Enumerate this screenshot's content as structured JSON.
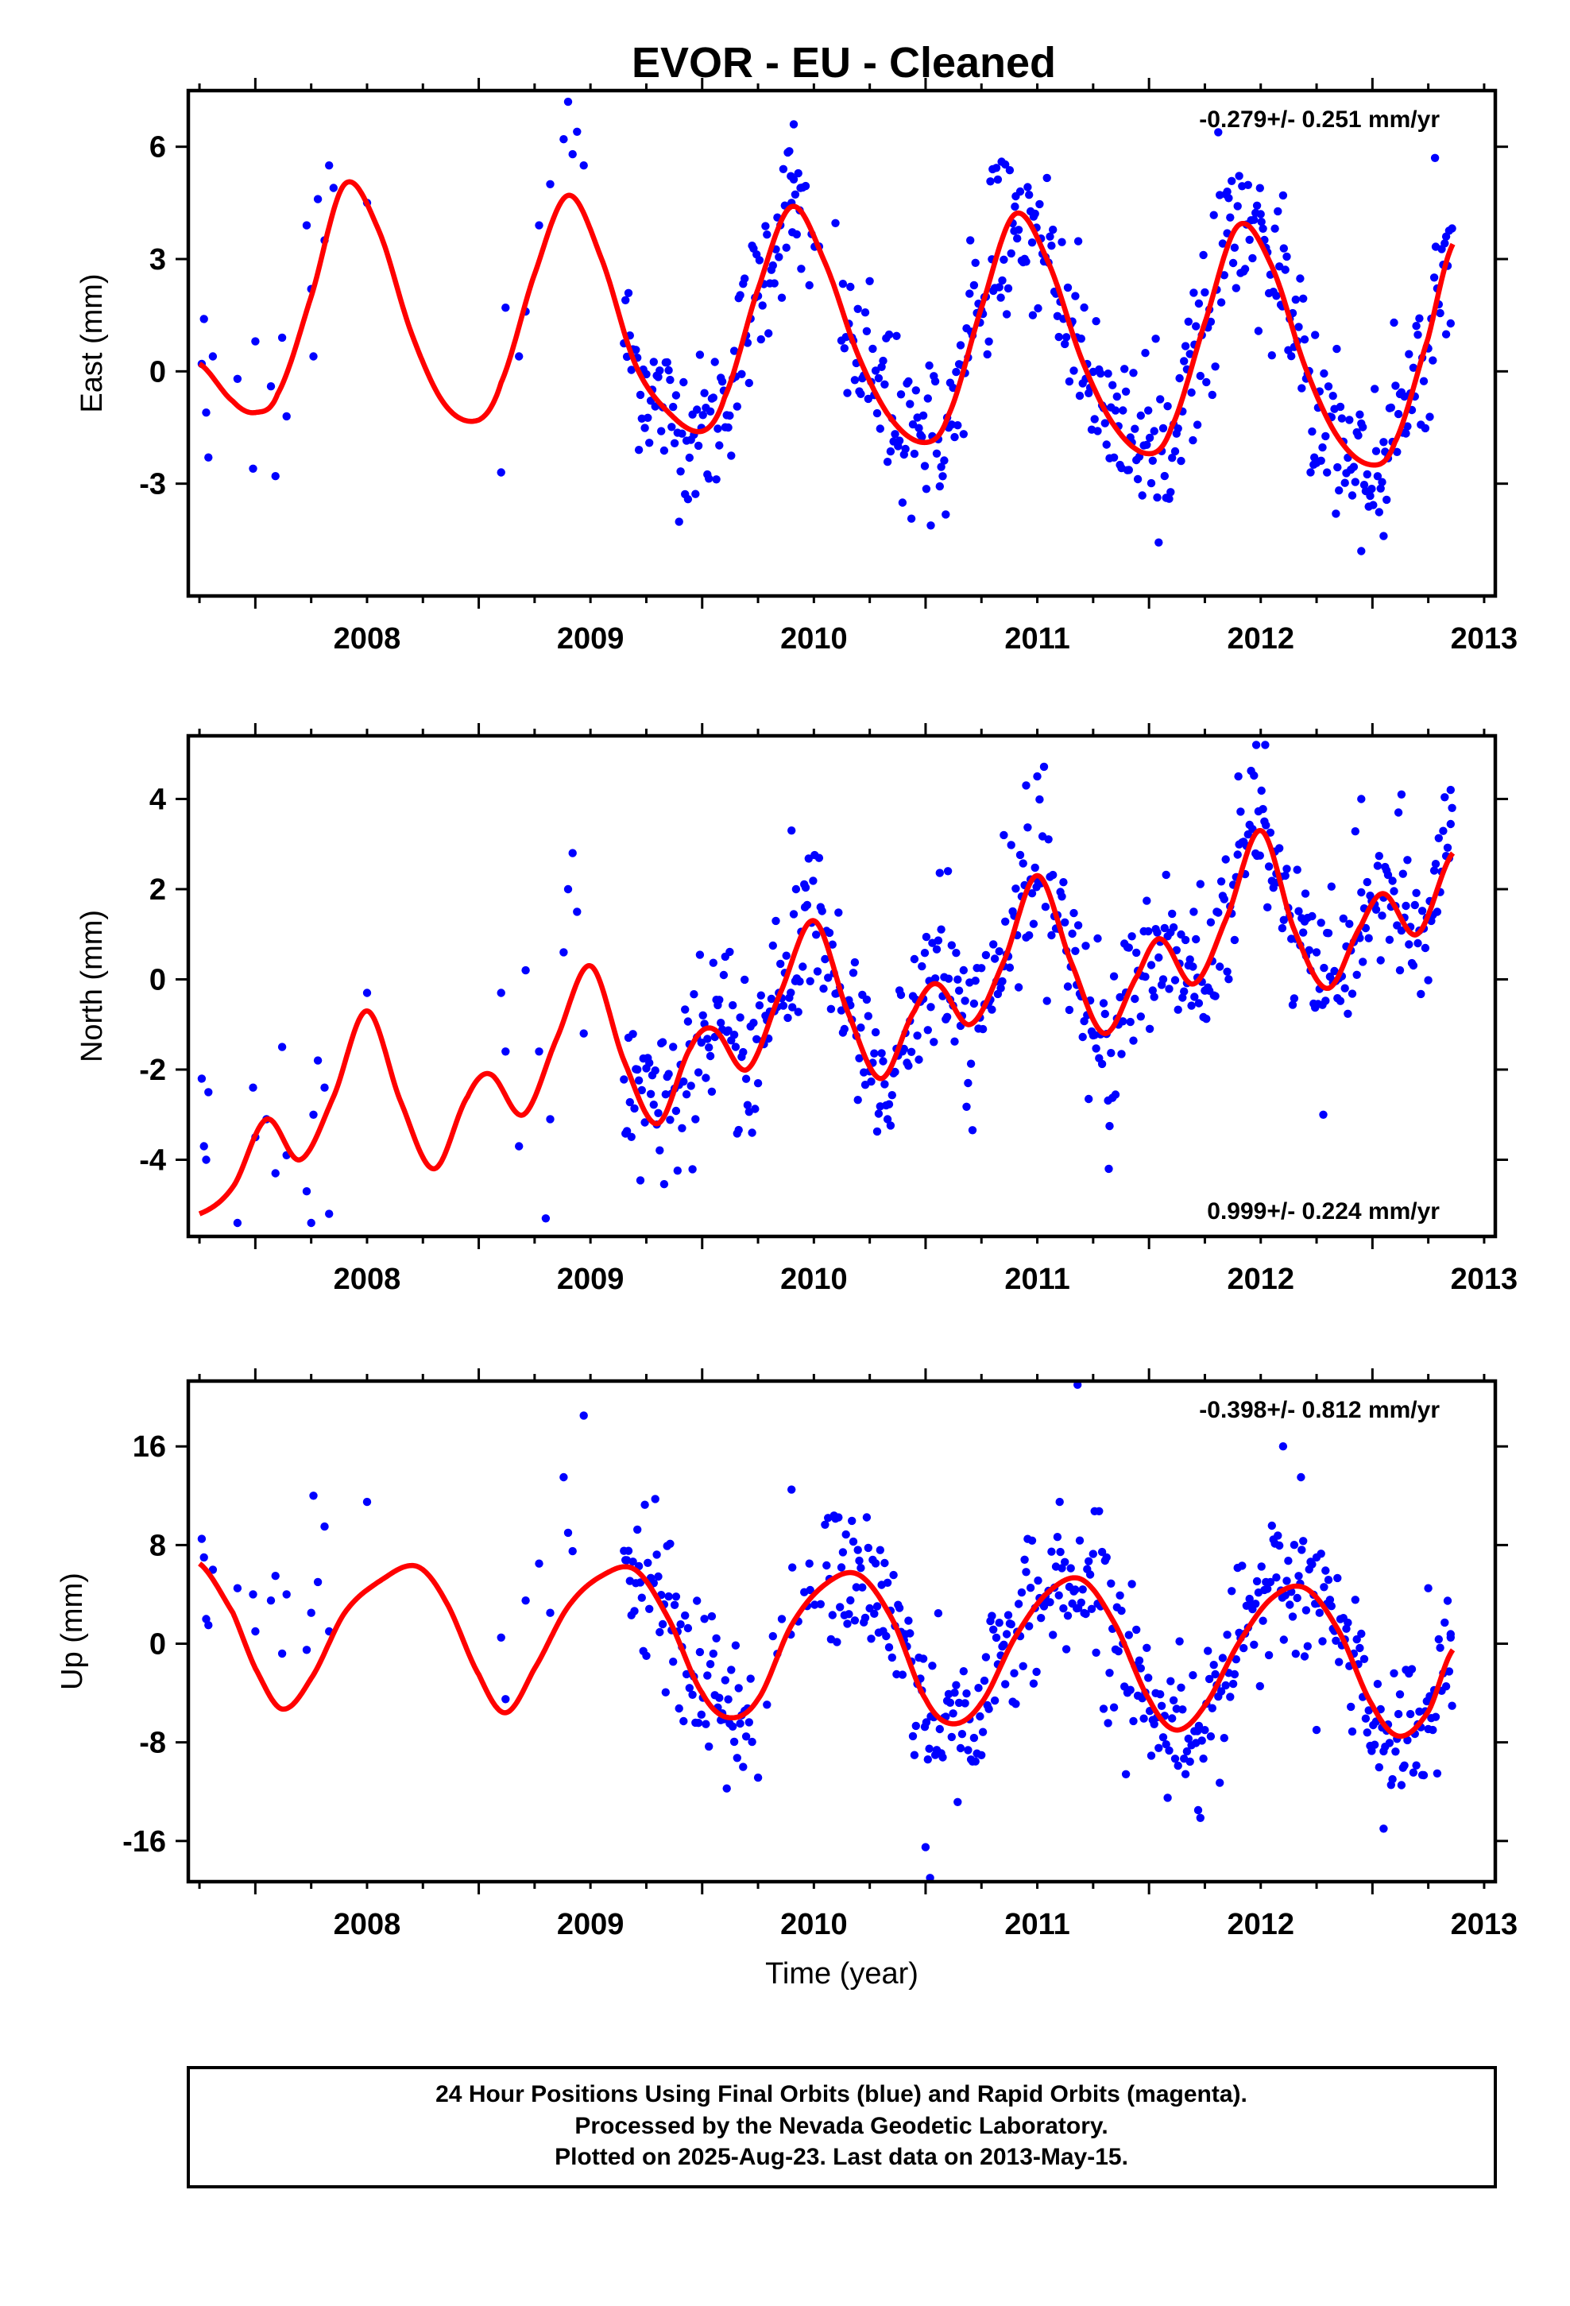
{
  "title": "EVOR  - EU - Cleaned",
  "chart_data": [
    {
      "type": "scatter",
      "ylabel": "East (mm)",
      "xlabel": "",
      "xlim": [
        2007.7,
        2013.55
      ],
      "ylim": [
        -6.0,
        7.5
      ],
      "xticks": [
        "2008",
        "2009",
        "2010",
        "2011",
        "2012",
        "2013"
      ],
      "yticks": [
        "-3",
        "0",
        "3",
        "6"
      ],
      "rate_label": "-0.279+/- 0.251 mm/yr",
      "rate_position": "top-right",
      "series": [
        {
          "kind": "observations",
          "color": "#0000ff",
          "gaps": [
            [
              2008.36,
              2008.62
            ],
            [
              2008.7,
              2009.08
            ]
          ],
          "points": [
            [
              2007.76,
              0.2
            ],
            [
              2007.77,
              1.4
            ],
            [
              2007.78,
              -1.1
            ],
            [
              2007.79,
              -2.3
            ],
            [
              2007.81,
              0.4
            ],
            [
              2007.92,
              -0.2
            ],
            [
              2007.99,
              -2.6
            ],
            [
              2008.0,
              0.8
            ],
            [
              2008.07,
              -0.4
            ],
            [
              2008.09,
              -2.8
            ],
            [
              2008.12,
              0.9
            ],
            [
              2008.14,
              -1.2
            ],
            [
              2008.23,
              3.9
            ],
            [
              2008.25,
              2.2
            ],
            [
              2008.26,
              0.4
            ],
            [
              2008.28,
              4.6
            ],
            [
              2008.31,
              3.5
            ],
            [
              2008.33,
              5.5
            ],
            [
              2008.35,
              4.9
            ],
            [
              2008.5,
              4.5
            ],
            [
              2009.1,
              -2.7
            ],
            [
              2009.12,
              1.7
            ],
            [
              2009.18,
              0.4
            ],
            [
              2009.21,
              1.6
            ],
            [
              2009.27,
              3.9
            ],
            [
              2009.32,
              5.0
            ],
            [
              2009.38,
              6.2
            ],
            [
              2009.4,
              7.2
            ],
            [
              2009.42,
              5.8
            ],
            [
              2009.44,
              6.4
            ],
            [
              2009.47,
              5.5
            ],
            [
              2010.4,
              4.5
            ],
            [
              2010.41,
              6.6
            ],
            [
              2010.44,
              4.9
            ],
            [
              2010.48,
              2.3
            ],
            [
              2011.2,
              3.5
            ],
            [
              2011.3,
              5.4
            ],
            [
              2011.34,
              5.6
            ],
            [
              2011.4,
              4.4
            ],
            [
              2011.48,
              1.5
            ],
            [
              2012.2,
              2.1
            ],
            [
              2012.35,
              4.8
            ],
            [
              2012.5,
              4.2
            ],
            [
              2012.6,
              4.7
            ],
            [
              2012.74,
              -2.3
            ],
            [
              2012.84,
              0.6
            ],
            [
              2012.95,
              -4.8
            ],
            [
              2013.05,
              -4.4
            ],
            [
              2013.28,
              5.7
            ],
            [
              2013.33,
              3.6
            ]
          ]
        },
        {
          "kind": "model",
          "color": "#ff0000",
          "x": [
            2007.75,
            2007.9,
            2008.0,
            2008.1,
            2008.25,
            2008.4,
            2008.55,
            2008.7,
            2008.85,
            2009.0,
            2009.1,
            2009.25,
            2009.4,
            2009.55,
            2009.7,
            2009.85,
            2010.0,
            2010.1,
            2010.25,
            2010.4,
            2010.55,
            2010.7,
            2010.85,
            2011.0,
            2011.1,
            2011.25,
            2011.4,
            2011.55,
            2011.7,
            2011.85,
            2012.0,
            2012.1,
            2012.25,
            2012.4,
            2012.55,
            2012.7,
            2012.85,
            2013.0,
            2013.1,
            2013.25,
            2013.36
          ],
          "y": [
            0.2,
            -0.8,
            -1.1,
            -0.6,
            2.0,
            5.0,
            3.8,
            1.0,
            -0.9,
            -1.3,
            -0.3,
            2.6,
            4.7,
            3.0,
            0.2,
            -1.1,
            -1.6,
            -0.7,
            2.2,
            4.4,
            2.9,
            0.4,
            -1.3,
            -1.9,
            -1.2,
            1.7,
            4.2,
            2.9,
            0.3,
            -1.5,
            -2.2,
            -1.5,
            1.3,
            3.9,
            2.8,
            0.1,
            -1.8,
            -2.5,
            -1.9,
            0.9,
            3.4
          ]
        }
      ]
    },
    {
      "type": "scatter",
      "ylabel": "North (mm)",
      "xlabel": "",
      "xlim": [
        2007.7,
        2013.55
      ],
      "ylim": [
        -5.7,
        5.4
      ],
      "xticks": [
        "2008",
        "2009",
        "2010",
        "2011",
        "2012",
        "2013"
      ],
      "yticks": [
        "-4",
        "-2",
        "0",
        "2",
        "4"
      ],
      "rate_label": "0.999+/- 0.224 mm/yr",
      "rate_position": "bottom-right",
      "series": [
        {
          "kind": "observations",
          "color": "#0000ff",
          "gaps": [
            [
              2008.36,
              2008.62
            ],
            [
              2008.7,
              2009.08
            ]
          ],
          "points": [
            [
              2007.76,
              -2.2
            ],
            [
              2007.77,
              -3.7
            ],
            [
              2007.78,
              -4.0
            ],
            [
              2007.79,
              -2.5
            ],
            [
              2007.92,
              -5.4
            ],
            [
              2007.99,
              -2.4
            ],
            [
              2008.0,
              -3.5
            ],
            [
              2008.05,
              -3.1
            ],
            [
              2008.09,
              -4.3
            ],
            [
              2008.12,
              -1.5
            ],
            [
              2008.14,
              -3.9
            ],
            [
              2008.23,
              -4.7
            ],
            [
              2008.25,
              -5.4
            ],
            [
              2008.26,
              -3.0
            ],
            [
              2008.28,
              -1.8
            ],
            [
              2008.31,
              -2.4
            ],
            [
              2008.33,
              -5.2
            ],
            [
              2008.5,
              -0.3
            ],
            [
              2009.1,
              -0.3
            ],
            [
              2009.12,
              -1.6
            ],
            [
              2009.18,
              -3.7
            ],
            [
              2009.21,
              0.2
            ],
            [
              2009.27,
              -1.6
            ],
            [
              2009.3,
              -5.3
            ],
            [
              2009.32,
              -3.1
            ],
            [
              2009.38,
              0.6
            ],
            [
              2009.4,
              2.0
            ],
            [
              2009.42,
              2.8
            ],
            [
              2009.44,
              1.5
            ],
            [
              2009.47,
              -1.2
            ],
            [
              2010.4,
              3.3
            ],
            [
              2010.42,
              2.0
            ],
            [
              2010.46,
              1.6
            ],
            [
              2011.1,
              2.4
            ],
            [
              2011.35,
              3.2
            ],
            [
              2011.5,
              4.5
            ],
            [
              2011.45,
              4.3
            ],
            [
              2011.82,
              -4.2
            ],
            [
              2012.2,
              1.5
            ],
            [
              2012.4,
              4.5
            ],
            [
              2012.48,
              5.2
            ],
            [
              2012.52,
              5.2
            ],
            [
              2012.7,
              1.9
            ],
            [
              2012.78,
              -3.0
            ],
            [
              2012.95,
              4.0
            ],
            [
              2013.13,
              4.1
            ],
            [
              2013.35,
              4.2
            ]
          ]
        },
        {
          "kind": "model",
          "color": "#ff0000",
          "x": [
            2007.75,
            2007.9,
            2008.05,
            2008.2,
            2008.35,
            2008.5,
            2008.65,
            2008.8,
            2008.95,
            2009.05,
            2009.2,
            2009.35,
            2009.5,
            2009.65,
            2009.8,
            2009.95,
            2010.05,
            2010.2,
            2010.35,
            2010.5,
            2010.65,
            2010.8,
            2010.95,
            2011.05,
            2011.2,
            2011.35,
            2011.5,
            2011.65,
            2011.8,
            2011.95,
            2012.05,
            2012.2,
            2012.35,
            2012.5,
            2012.65,
            2012.8,
            2012.95,
            2013.05,
            2013.2,
            2013.36
          ],
          "y": [
            -5.2,
            -4.6,
            -3.1,
            -4.0,
            -2.6,
            -0.7,
            -2.7,
            -4.2,
            -2.6,
            -2.1,
            -3.0,
            -1.3,
            0.3,
            -1.8,
            -3.2,
            -1.5,
            -1.1,
            -2.0,
            -0.3,
            1.3,
            -0.7,
            -2.2,
            -0.7,
            -0.1,
            -1.0,
            0.4,
            2.3,
            0.4,
            -1.2,
            0.1,
            0.9,
            -0.1,
            1.4,
            3.3,
            1.1,
            -0.2,
            1.2,
            1.9,
            1.0,
            2.8
          ]
        }
      ]
    },
    {
      "type": "scatter",
      "ylabel": "Up (mm)",
      "xlabel": "Time (year)",
      "xlim": [
        2007.7,
        2013.55
      ],
      "ylim": [
        -19.3,
        21.3
      ],
      "xticks": [
        "2008",
        "2009",
        "2010",
        "2011",
        "2012",
        "2013"
      ],
      "yticks": [
        "-16",
        "-8",
        "0",
        "8",
        "16"
      ],
      "rate_label": "-0.398+/- 0.812 mm/yr",
      "rate_position": "top-right",
      "series": [
        {
          "kind": "observations",
          "color": "#0000ff",
          "gaps": [
            [
              2008.36,
              2008.62
            ],
            [
              2008.7,
              2009.08
            ]
          ],
          "points": [
            [
              2007.76,
              8.5
            ],
            [
              2007.77,
              7.0
            ],
            [
              2007.78,
              2.0
            ],
            [
              2007.79,
              1.5
            ],
            [
              2007.81,
              6.0
            ],
            [
              2007.92,
              4.5
            ],
            [
              2007.99,
              4.0
            ],
            [
              2008.0,
              1.0
            ],
            [
              2008.07,
              3.5
            ],
            [
              2008.09,
              5.5
            ],
            [
              2008.12,
              -0.8
            ],
            [
              2008.14,
              4.0
            ],
            [
              2008.23,
              -0.5
            ],
            [
              2008.25,
              2.5
            ],
            [
              2008.26,
              12.0
            ],
            [
              2008.28,
              5.0
            ],
            [
              2008.31,
              9.5
            ],
            [
              2008.33,
              1.0
            ],
            [
              2008.5,
              11.5
            ],
            [
              2009.1,
              0.5
            ],
            [
              2009.12,
              -4.5
            ],
            [
              2009.21,
              3.5
            ],
            [
              2009.27,
              6.5
            ],
            [
              2009.32,
              2.5
            ],
            [
              2009.38,
              13.5
            ],
            [
              2009.4,
              9.0
            ],
            [
              2009.42,
              7.5
            ],
            [
              2009.47,
              18.5
            ],
            [
              2010.4,
              12.5
            ],
            [
              2010.48,
              6.5
            ],
            [
              2011.0,
              -16.5
            ],
            [
              2011.02,
              -19.0
            ],
            [
              2011.6,
              11.5
            ],
            [
              2011.68,
              21.0
            ],
            [
              2012.22,
              -13.5
            ],
            [
              2012.6,
              16.0
            ],
            [
              2012.68,
              13.5
            ],
            [
              2012.75,
              -7.0
            ],
            [
              2013.05,
              -15.0
            ],
            [
              2013.25,
              4.5
            ],
            [
              2013.35,
              0.5
            ]
          ]
        },
        {
          "kind": "model",
          "color": "#ff0000",
          "x": [
            2007.75,
            2007.9,
            2008.0,
            2008.12,
            2008.25,
            2008.4,
            2008.55,
            2008.72,
            2008.85,
            2009.0,
            2009.12,
            2009.25,
            2009.4,
            2009.55,
            2009.7,
            2009.85,
            2010.0,
            2010.12,
            2010.25,
            2010.4,
            2010.55,
            2010.7,
            2010.85,
            2011.0,
            2011.12,
            2011.25,
            2011.4,
            2011.55,
            2011.7,
            2011.85,
            2012.0,
            2012.12,
            2012.25,
            2012.4,
            2012.55,
            2012.7,
            2012.85,
            2013.0,
            2013.12,
            2013.25,
            2013.36
          ],
          "y": [
            6.5,
            2.5,
            -2.0,
            -5.3,
            -2.8,
            2.5,
            5.0,
            6.3,
            3.5,
            -2.5,
            -5.6,
            -2.0,
            3.0,
            5.5,
            6.0,
            2.0,
            -4.0,
            -6.0,
            -4.5,
            1.5,
            4.8,
            5.6,
            2.0,
            -4.5,
            -6.5,
            -4.8,
            0.5,
            4.2,
            5.2,
            1.5,
            -4.5,
            -7.0,
            -5.0,
            0.0,
            3.7,
            4.5,
            1.0,
            -5.0,
            -7.5,
            -5.5,
            -0.5
          ]
        }
      ]
    }
  ],
  "footer": {
    "line1": "24 Hour Positions Using Final Orbits (blue) and Rapid Orbits (magenta).",
    "line2": "Processed by the Nevada Geodetic Laboratory.",
    "line3": "Plotted on 2025-Aug-23. Last data on 2013-May-15."
  }
}
